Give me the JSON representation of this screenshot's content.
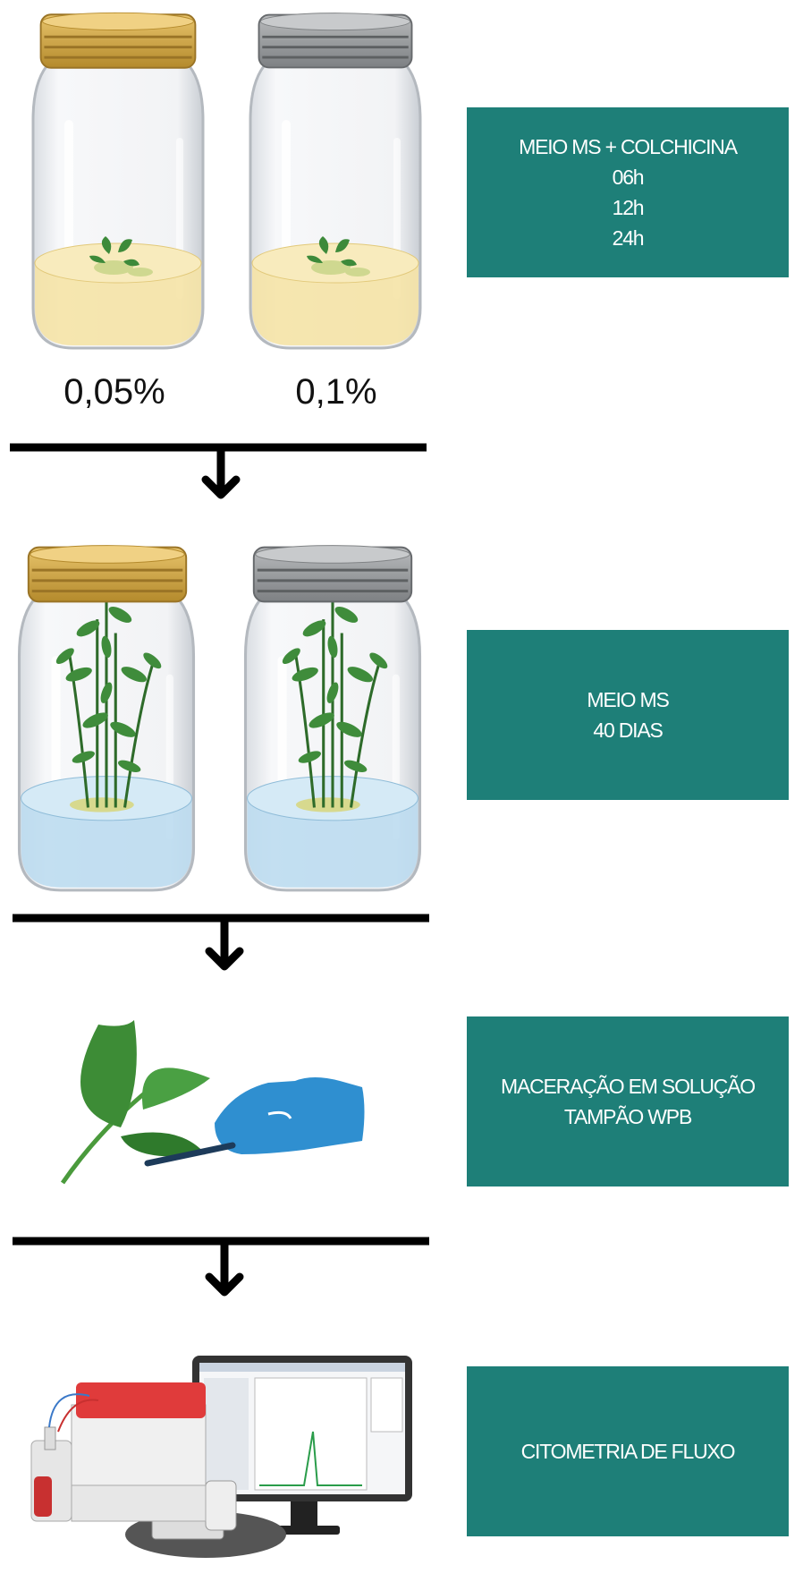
{
  "jars": {
    "labels": [
      "0,05%",
      "0,1%"
    ]
  },
  "steps": [
    {
      "lines": [
        "MEIO MS + COLCHICINA",
        "06h",
        "12h",
        "24h"
      ]
    },
    {
      "lines": [
        "MEIO MS",
        "40 DIAS"
      ]
    },
    {
      "lines": [
        "MACERAÇÃO EM SOLUÇÃO",
        "TAMPÃO WPB"
      ]
    },
    {
      "lines": [
        "CITOMETRIA DE FLUXO"
      ]
    }
  ]
}
